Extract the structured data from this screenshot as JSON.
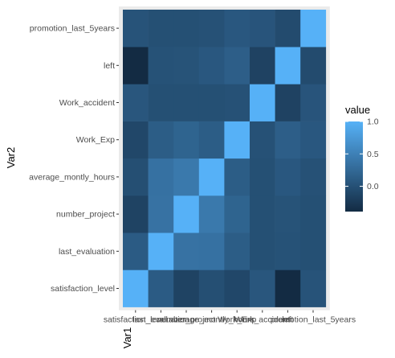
{
  "chart_data": {
    "type": "heatmap",
    "title": "",
    "xlabel": "Var1",
    "ylabel": "Var2",
    "x_categories": [
      "satisfaction_level",
      "last_evaluation",
      "number_project",
      "average_montly_hours",
      "Work_Exp",
      "Work_accident",
      "left",
      "promotion_last_5years"
    ],
    "y_categories": [
      "satisfaction_level",
      "last_evaluation",
      "number_project",
      "average_montly_hours",
      "Work_Exp",
      "Work_accident",
      "left",
      "promotion_last_5years"
    ],
    "values": [
      [
        1.0,
        0.11,
        -0.14,
        -0.02,
        -0.1,
        0.06,
        -0.39,
        0.03
      ],
      [
        0.11,
        1.0,
        0.35,
        0.34,
        0.13,
        -0.01,
        0.01,
        -0.01
      ],
      [
        -0.14,
        0.35,
        1.0,
        0.42,
        0.2,
        -0.01,
        0.02,
        -0.01
      ],
      [
        -0.02,
        0.34,
        0.42,
        1.0,
        0.13,
        -0.01,
        0.07,
        0.0
      ],
      [
        -0.1,
        0.13,
        0.2,
        0.13,
        1.0,
        0.0,
        0.14,
        0.07
      ],
      [
        0.06,
        -0.01,
        -0.01,
        -0.01,
        0.0,
        1.0,
        -0.15,
        0.04
      ],
      [
        -0.39,
        0.01,
        0.02,
        0.07,
        0.14,
        -0.15,
        1.0,
        -0.06
      ],
      [
        0.03,
        -0.01,
        -0.01,
        0.0,
        0.07,
        0.04,
        -0.06,
        1.0
      ]
    ],
    "value_range": [
      -0.39,
      1.0
    ],
    "color_low": "#132B43",
    "color_high": "#56B1F7",
    "legend": {
      "title": "value",
      "breaks": [
        1.0,
        0.5,
        0.0
      ],
      "labels": [
        "1.0",
        "0.5",
        "0.0"
      ],
      "placement": "right"
    },
    "grid": true,
    "panel_background": "#EBEBEB"
  }
}
